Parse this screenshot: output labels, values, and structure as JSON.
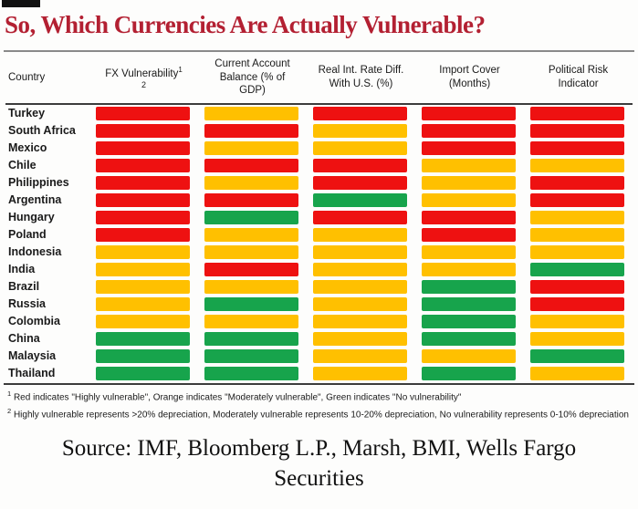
{
  "title": "So, Which Currencies Are Actually Vulnerable?",
  "table_header": {
    "country": "Country",
    "fx_label": "FX Vulnerability",
    "fx_sup1": "1",
    "fx_sup2": "2",
    "cab": "Current Account Balance (% of GDP)",
    "rir": "Real Int. Rate Diff. With U.S. (%)",
    "import_cover": "Import Cover (Months)",
    "political": "Political Risk Indicator"
  },
  "footnotes": {
    "marker1": "1",
    "text1": "Red indicates \"Highly vulnerable\", Orange indicates \"Moderately vulnerable\", Green indicates \"No vulnerability\"",
    "marker2": "2",
    "text2": "Highly vulnerable represents >20% depreciation, Moderately vulnerable represents 10-20% depreciation, No vulnerability represents 0-10% depreciation"
  },
  "source": "Source: IMF, Bloomberg L.P., Marsh, BMI, Wells Fargo Securities",
  "chart_data": {
    "type": "heatmap",
    "title": "So, Which Currencies Are Actually Vulnerable?",
    "columns": [
      "FX Vulnerability",
      "Current Account Balance (% of GDP)",
      "Real Int. Rate Diff. With U.S. (%)",
      "Import Cover (Months)",
      "Political Risk Indicator"
    ],
    "legend": {
      "red": "Highly vulnerable",
      "orange": "Moderately vulnerable",
      "green": "No vulnerability"
    },
    "palette": {
      "red": "#ee1111",
      "orange": "#ffc000",
      "green": "#17a44c"
    },
    "rows": [
      {
        "country": "Turkey",
        "cells": [
          "red",
          "orange",
          "red",
          "red",
          "red"
        ]
      },
      {
        "country": "South Africa",
        "cells": [
          "red",
          "red",
          "orange",
          "red",
          "red"
        ]
      },
      {
        "country": "Mexico",
        "cells": [
          "red",
          "orange",
          "orange",
          "red",
          "red"
        ]
      },
      {
        "country": "Chile",
        "cells": [
          "red",
          "red",
          "red",
          "orange",
          "orange"
        ]
      },
      {
        "country": "Philippines",
        "cells": [
          "red",
          "orange",
          "red",
          "orange",
          "red"
        ]
      },
      {
        "country": "Argentina",
        "cells": [
          "red",
          "red",
          "green",
          "orange",
          "red"
        ]
      },
      {
        "country": "Hungary",
        "cells": [
          "red",
          "green",
          "red",
          "red",
          "orange"
        ]
      },
      {
        "country": "Poland",
        "cells": [
          "red",
          "orange",
          "orange",
          "red",
          "orange"
        ]
      },
      {
        "country": "Indonesia",
        "cells": [
          "orange",
          "orange",
          "orange",
          "orange",
          "orange"
        ]
      },
      {
        "country": "India",
        "cells": [
          "orange",
          "red",
          "orange",
          "orange",
          "green"
        ]
      },
      {
        "country": "Brazil",
        "cells": [
          "orange",
          "orange",
          "orange",
          "green",
          "red"
        ]
      },
      {
        "country": "Russia",
        "cells": [
          "orange",
          "green",
          "orange",
          "green",
          "red"
        ]
      },
      {
        "country": "Colombia",
        "cells": [
          "orange",
          "orange",
          "orange",
          "green",
          "orange"
        ]
      },
      {
        "country": "China",
        "cells": [
          "green",
          "green",
          "orange",
          "green",
          "orange"
        ]
      },
      {
        "country": "Malaysia",
        "cells": [
          "green",
          "green",
          "orange",
          "orange",
          "green"
        ]
      },
      {
        "country": "Thailand",
        "cells": [
          "green",
          "green",
          "orange",
          "green",
          "orange"
        ]
      }
    ]
  }
}
